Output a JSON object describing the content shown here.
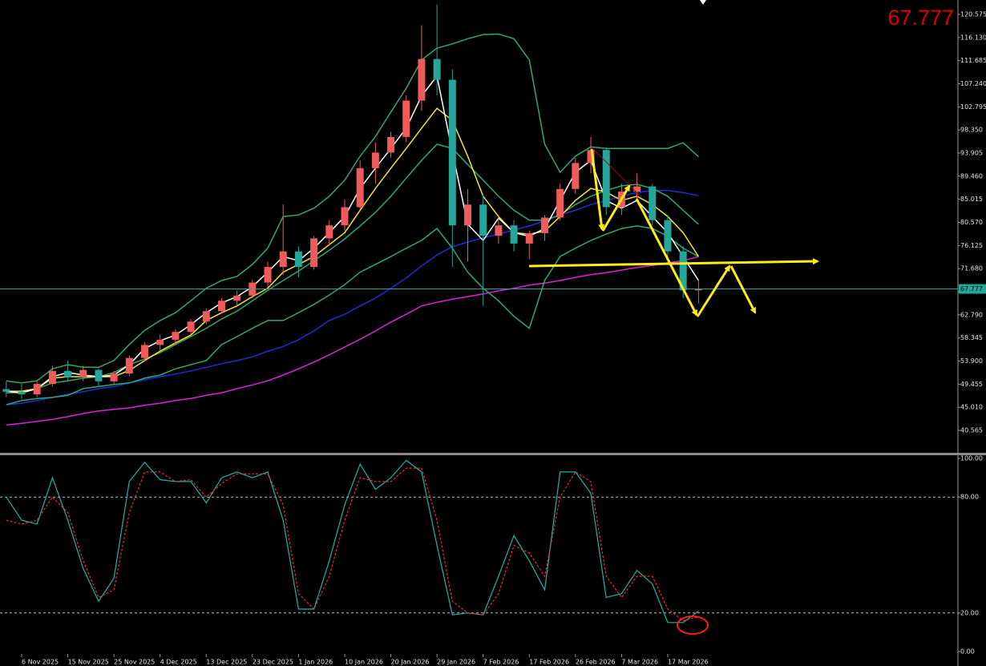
{
  "chart_data": [
    {
      "type": "candlestick",
      "last_price": 67.777,
      "up_color": "#ef5a5a",
      "down_color": "#26a69a",
      "categories": [
        null,
        "6 Nov 2025",
        null,
        null,
        "15 Nov 2025",
        null,
        null,
        "25 Nov 2025",
        null,
        null,
        "4 Dec 2025",
        null,
        null,
        "13 Dec 2025",
        null,
        null,
        "23 Dec 2025",
        null,
        null,
        "1 Jan 2026",
        null,
        null,
        "10 Jan 2026",
        null,
        null,
        "20 Jan 2026",
        null,
        null,
        "29 Jan 2026",
        null,
        null,
        "7 Feb 2026",
        null,
        null,
        "17 Feb 2026",
        null,
        null,
        "26 Feb 2026",
        null,
        null,
        "7 Mar 2026",
        null,
        null,
        "17 Mar 2026",
        null,
        null
      ],
      "open": [
        48.5,
        48,
        47.5,
        49.5,
        52,
        50.8,
        52.2,
        50,
        51.5,
        54.5,
        57,
        58,
        59.5,
        61.5,
        63.5,
        65.5,
        66.5,
        69,
        72,
        75,
        72,
        77.5,
        80,
        83.5,
        91,
        94,
        97,
        104,
        112,
        108,
        80,
        84,
        78,
        80,
        76.5,
        78.5,
        81.5,
        87,
        92,
        94.5,
        83.5,
        86.5,
        87.5,
        81,
        75,
        67.5
      ],
      "high": [
        50,
        49.5,
        50,
        53,
        54,
        53,
        52.5,
        52,
        55,
        57.5,
        59,
        60,
        62,
        64,
        66,
        67.5,
        69.5,
        73,
        84,
        76,
        78,
        81,
        85,
        92.5,
        96,
        98,
        105,
        118.5,
        122.5,
        110,
        87,
        86,
        82,
        81,
        79,
        82,
        88,
        93,
        97,
        95,
        88,
        90,
        88,
        82,
        76,
        69.5
      ],
      "low": [
        47,
        46.5,
        47,
        49,
        50,
        50,
        49,
        49.5,
        51,
        54,
        56,
        57,
        59,
        61,
        63,
        64.5,
        66,
        68,
        70.5,
        70,
        71.5,
        76,
        79,
        83,
        88,
        93,
        96,
        102,
        105,
        72,
        73,
        64.5,
        76.5,
        75,
        73.5,
        77,
        81,
        86,
        90,
        82,
        82,
        85,
        80,
        73,
        66,
        65
      ],
      "close": [
        48,
        47.5,
        49.5,
        52,
        50.8,
        52.2,
        50,
        51.5,
        54.5,
        57,
        58,
        59.5,
        61.5,
        63.5,
        65.5,
        66.5,
        69,
        72,
        75,
        72,
        77.5,
        80,
        83.5,
        91,
        94,
        97,
        104,
        112,
        108,
        80,
        84,
        78,
        80,
        76.5,
        78.5,
        81.5,
        87,
        92,
        94.5,
        83.5,
        86.5,
        87.5,
        81,
        75,
        67.5,
        67.8
      ],
      "lines": [
        {
          "color": "#e020e0",
          "values": [
            41.6,
            41.9,
            42.3,
            42.7,
            43.2,
            43.8,
            44.3,
            44.6,
            44.9,
            45.4,
            45.8,
            46.3,
            46.7,
            47.3,
            47.8,
            48.6,
            49.3,
            50.1,
            51.2,
            52.4,
            53.7,
            55.1,
            56.6,
            58.1,
            59.7,
            61.4,
            62.9,
            64.5,
            65.2,
            65.8,
            66.3,
            66.8,
            67.4,
            67.9,
            68.5,
            68.9,
            69.4,
            70,
            70.5,
            70.9,
            71.4,
            71.9,
            72.3,
            72.8,
            73.2,
            74
          ]
        },
        {
          "color": "#1f2fd8",
          "values": [
            45.5,
            45.8,
            46.3,
            46.9,
            47.5,
            48,
            48.6,
            49,
            49.7,
            50.3,
            50.9,
            51.4,
            52,
            52.7,
            53.4,
            54,
            54.7,
            55.8,
            56.7,
            58,
            59.7,
            61.7,
            62.9,
            64.5,
            66,
            67.9,
            69.9,
            72.2,
            74.3,
            75.9,
            76.8,
            77.6,
            78.3,
            79.1,
            79.9,
            80.8,
            82,
            82.9,
            84,
            84.8,
            85.6,
            86.3,
            86.7,
            86.7,
            86.3,
            85.7
          ]
        },
        {
          "color": "#33a86a",
          "values": [
            50.1,
            49.7,
            50.1,
            52.4,
            53.2,
            52.7,
            52.7,
            54,
            57.1,
            59.8,
            61.7,
            63.2,
            65.5,
            67.9,
            69.4,
            70.2,
            72.5,
            75.6,
            81.7,
            82,
            83.3,
            85.6,
            88.7,
            93.3,
            97.1,
            101.8,
            106.4,
            111.8,
            114.1,
            114.9,
            115.9,
            116.7,
            116.8,
            115.9,
            111.8,
            95.6,
            90.2,
            93.3,
            95.1,
            94.8,
            94.8,
            94.8,
            94.8,
            94.8,
            95.9,
            93.2
          ]
        },
        {
          "color": "#33a86a",
          "values": [
            47.8,
            47.8,
            48.6,
            49.7,
            50.1,
            50.6,
            50.9,
            51.7,
            53.2,
            54.3,
            55.5,
            57.1,
            58.6,
            60.2,
            62,
            63.5,
            65.5,
            67.5,
            69.4,
            71.2,
            73.2,
            75.2,
            77.4,
            79.9,
            82.5,
            85.6,
            89.1,
            92.5,
            95.6,
            94.8,
            91.7,
            88.7,
            85.6,
            82.9,
            81,
            81,
            82,
            84,
            85.6,
            86.7,
            87.6,
            87.9,
            87.1,
            85.6,
            82.9,
            80.2
          ]
        },
        {
          "color": "#33a86a",
          "values": [
            45.5,
            46.3,
            46.7,
            46.9,
            47.3,
            48.6,
            49,
            49.4,
            49.7,
            50.6,
            51.2,
            52.4,
            53.2,
            54,
            57.1,
            58.6,
            60.2,
            61.7,
            61.7,
            63.2,
            64.8,
            66.6,
            68.6,
            71,
            72.5,
            74,
            75.6,
            77.1,
            79.4,
            75.6,
            71,
            67.9,
            65.5,
            62.5,
            60.2,
            69.4,
            74,
            75.6,
            77.1,
            78.3,
            79.4,
            79.9,
            79.4,
            77.9,
            75.6,
            74
          ]
        },
        {
          "color": "#f5e62a",
          "values": [
            48.1,
            48.1,
            48.6,
            50.6,
            50.9,
            50.9,
            50.9,
            50.9,
            52.1,
            54,
            55.8,
            57.4,
            58.9,
            61.7,
            63.2,
            64.5,
            66.3,
            67.9,
            71,
            72.5,
            74,
            76.3,
            78.6,
            82.9,
            87.1,
            91,
            94.8,
            98.7,
            102.5,
            100.2,
            93.3,
            85.6,
            81.7,
            78.6,
            78.3,
            78.9,
            81.7,
            84.8,
            87.1,
            86.4,
            84.8,
            85.6,
            84,
            81.7,
            78.6,
            74
          ]
        },
        {
          "color": "#ffffff",
          "values": [
            48.1,
            47.8,
            48.6,
            50.9,
            51.7,
            51.2,
            50.9,
            51.2,
            53.2,
            56.3,
            57.8,
            58.9,
            60.9,
            63.2,
            65.1,
            66.3,
            68.2,
            71,
            74,
            73.2,
            75.6,
            78.6,
            81.7,
            87.1,
            91,
            94.8,
            98.7,
            104.9,
            108.7,
            94.1,
            80.2,
            77.1,
            81.4,
            78.6,
            77.9,
            79.4,
            84.8,
            90.2,
            92.5,
            84.8,
            83.3,
            84.8,
            81.7,
            78.6,
            74,
            69.4
          ]
        }
      ],
      "ylim": [
        36.25,
        123.35
      ],
      "yticks": [
        120.575,
        {
          "value": 116.13,
          "label": "116.130"
        },
        111.685,
        {
          "value": 107.24,
          "label": "107.240"
        },
        102.795,
        {
          "value": 98.35,
          "label": "98.350"
        },
        93.905,
        {
          "value": 89.46,
          "label": "89.460"
        },
        85.015,
        {
          "value": 80.57,
          "label": "80.570"
        },
        76.125,
        {
          "value": 71.68,
          "label": "71.680"
        },
        67.235,
        {
          "value": 62.79,
          "label": "62.790"
        },
        58.345,
        {
          "value": 53.9,
          "label": "53.900"
        },
        49.455,
        {
          "value": 45.01,
          "label": "45.010"
        },
        40.565
      ]
    },
    {
      "type": "line",
      "series": [
        {
          "color": "#20b2aa",
          "style": "solid",
          "values": [
            80,
            68,
            66,
            90,
            68,
            43,
            26,
            38,
            88,
            98,
            89,
            88,
            88,
            77,
            90,
            93,
            90,
            93,
            68,
            22,
            22,
            47,
            76,
            97,
            84,
            90,
            99,
            93,
            55,
            19,
            20,
            19,
            39,
            60,
            47,
            32,
            93,
            93,
            82,
            28,
            30,
            42,
            35,
            15,
            15,
            21
          ]
        },
        {
          "color": "#e03030",
          "style": "dotted",
          "values": [
            68,
            66,
            68,
            80,
            72,
            47,
            28,
            32,
            72,
            93,
            93,
            88,
            89,
            80,
            87,
            92,
            92,
            92,
            76,
            30,
            22,
            39,
            68,
            90,
            88,
            88,
            95,
            95,
            68,
            26,
            20,
            19,
            30,
            55,
            51,
            39,
            80,
            93,
            88,
            39,
            28,
            39,
            39,
            22,
            16,
            18
          ]
        }
      ],
      "levels": [
        80,
        20
      ],
      "ylim": [
        -7.47,
        101.66
      ],
      "yticks": [
        {
          "value": 100,
          "label": "100.00"
        },
        {
          "value": 80,
          "label": "80.00"
        },
        {
          "value": 20,
          "label": "20.00"
        },
        {
          "value": 0,
          "label": "0.00"
        }
      ]
    }
  ]
}
